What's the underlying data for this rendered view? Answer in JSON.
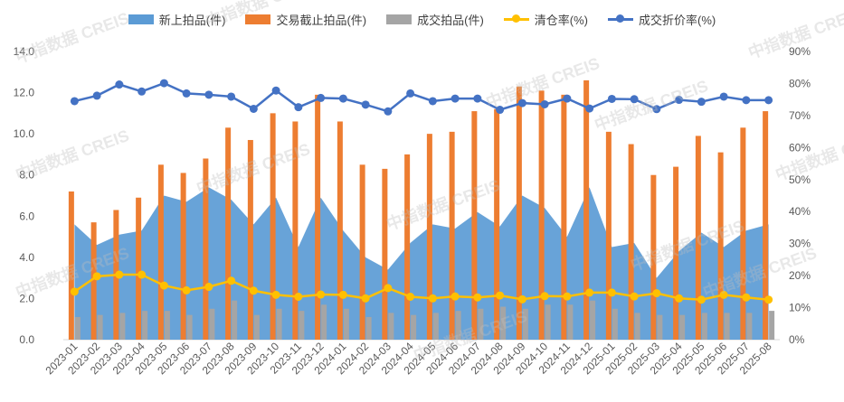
{
  "chart_data": {
    "type": "bar",
    "categories": [
      "2023-01",
      "2023-02",
      "2023-03",
      "2023-04",
      "2023-05",
      "2023-06",
      "2023-07",
      "2023-08",
      "2023-09",
      "2023-10",
      "2023-11",
      "2023-12",
      "2024-01",
      "2024-02",
      "2024-03",
      "2024-04",
      "2024-05",
      "2024-06",
      "2024-07",
      "2024-08",
      "2024-09",
      "2024-10",
      "2024-11",
      "2024-12",
      "2025-01",
      "2025-02",
      "2025-03",
      "2025-04",
      "2025-05",
      "2025-06",
      "2025-07",
      "2025-08"
    ],
    "left_axis": {
      "ylim": [
        0,
        14
      ],
      "ticks": [
        "0.0",
        "2.0",
        "4.0",
        "6.0",
        "8.0",
        "10.0",
        "12.0",
        "14.0"
      ]
    },
    "right_axis": {
      "ylim": [
        0,
        90
      ],
      "ticks": [
        "0%",
        "10%",
        "20%",
        "30%",
        "40%",
        "50%",
        "60%",
        "70%",
        "80%",
        "90%"
      ]
    },
    "series": [
      {
        "name": "新上拍品(件)",
        "kind": "area",
        "axis": "left",
        "color": "#5b9bd5",
        "values": [
          5.6,
          4.6,
          5.1,
          5.3,
          7.0,
          6.7,
          7.4,
          6.8,
          5.6,
          6.9,
          4.5,
          6.9,
          5.3,
          4.0,
          3.4,
          4.7,
          5.6,
          5.4,
          6.2,
          5.5,
          7.0,
          6.4,
          5.0,
          7.4,
          4.5,
          4.7,
          3.0,
          4.3,
          5.2,
          4.5,
          5.3,
          5.6
        ]
      },
      {
        "name": "交易截止拍品(件)",
        "kind": "bar",
        "axis": "left",
        "color": "#ed7d31",
        "values": [
          7.2,
          5.7,
          6.3,
          6.9,
          8.5,
          8.1,
          8.8,
          10.3,
          9.7,
          11.0,
          10.6,
          11.9,
          10.6,
          8.5,
          8.3,
          9.0,
          10.0,
          10.1,
          11.1,
          11.2,
          12.3,
          12.1,
          11.9,
          12.6,
          10.1,
          9.5,
          8.0,
          8.4,
          9.9,
          9.1,
          10.3,
          11.1
        ]
      },
      {
        "name": "成交拍品(件)",
        "kind": "bar",
        "axis": "left",
        "color": "#a5a5a5",
        "values": [
          1.1,
          1.2,
          1.3,
          1.4,
          1.4,
          1.2,
          1.5,
          1.9,
          1.2,
          1.5,
          1.4,
          1.7,
          1.5,
          1.1,
          1.3,
          1.2,
          1.3,
          1.4,
          1.5,
          1.6,
          1.5,
          1.7,
          1.7,
          1.9,
          1.5,
          1.3,
          1.2,
          1.2,
          1.3,
          1.3,
          1.3,
          1.4
        ]
      },
      {
        "name": "清仓率(%)",
        "kind": "line",
        "axis": "right",
        "color": "#ffc000",
        "values": [
          15.0,
          19.8,
          20.3,
          20.3,
          16.9,
          15.4,
          16.5,
          18.4,
          15.3,
          14.0,
          13.4,
          14.1,
          14.0,
          12.9,
          16.1,
          13.4,
          12.9,
          13.5,
          13.2,
          13.8,
          12.6,
          13.6,
          13.5,
          14.7,
          14.7,
          13.5,
          14.5,
          12.9,
          12.5,
          14.0,
          13.2,
          12.5
        ]
      },
      {
        "name": "成交折价率(%)",
        "kind": "line",
        "axis": "right",
        "color": "#4472c4",
        "values": [
          74.5,
          76.2,
          79.7,
          77.5,
          80.1,
          76.9,
          76.5,
          75.9,
          72.1,
          77.8,
          72.6,
          75.5,
          75.3,
          73.4,
          71.3,
          76.9,
          74.5,
          75.3,
          75.3,
          71.8,
          73.9,
          73.5,
          75.3,
          72.2,
          75.2,
          75.1,
          72.0,
          74.9,
          74.3,
          75.9,
          74.8,
          74.8
        ]
      }
    ]
  },
  "watermark": {
    "text": "中指数据 CREIS"
  }
}
